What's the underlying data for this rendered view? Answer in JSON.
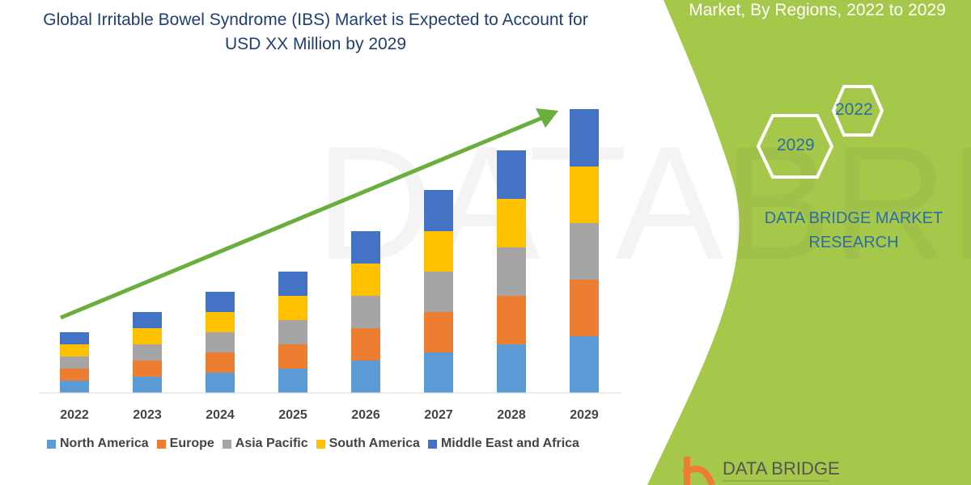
{
  "title": "Global Irritable Bowel Syndrome (IBS) Market is Expected to Account for USD XX Million by 2029",
  "side_panel": {
    "title": "Market, By Regions, 2022 to 2029",
    "hex_years": [
      "2022",
      "2029"
    ],
    "brand": "DATA BRIDGE MARKET RESEARCH",
    "logo_text": "DATA BRIDGE",
    "panel_color": "#a5c84a"
  },
  "chart_data": {
    "type": "bar",
    "stacked": true,
    "title": "Global Irritable Bowel Syndrome (IBS) Market is Expected to Account for USD XX Million by 2029",
    "categories": [
      "2022",
      "2023",
      "2024",
      "2025",
      "2026",
      "2027",
      "2028",
      "2029"
    ],
    "series": [
      {
        "name": "North America",
        "color": "#5b9bd5",
        "values": [
          15,
          20,
          25,
          30,
          40,
          50,
          60,
          70
        ]
      },
      {
        "name": "Europe",
        "color": "#ed7d31",
        "values": [
          15,
          20,
          25,
          30,
          40,
          50,
          60,
          70
        ]
      },
      {
        "name": "Asia Pacific",
        "color": "#a5a5a5",
        "values": [
          15,
          20,
          25,
          30,
          40,
          50,
          60,
          70
        ]
      },
      {
        "name": "South America",
        "color": "#ffc000",
        "values": [
          15,
          20,
          25,
          30,
          40,
          50,
          60,
          70
        ]
      },
      {
        "name": "Middle East and Africa",
        "color": "#4472c4",
        "values": [
          15,
          20,
          25,
          30,
          40,
          51,
          60,
          71
        ]
      }
    ],
    "y_axis_shown": false,
    "grid": false,
    "legend_position": "bottom",
    "trend_arrow_color": "#6aaf3d"
  }
}
